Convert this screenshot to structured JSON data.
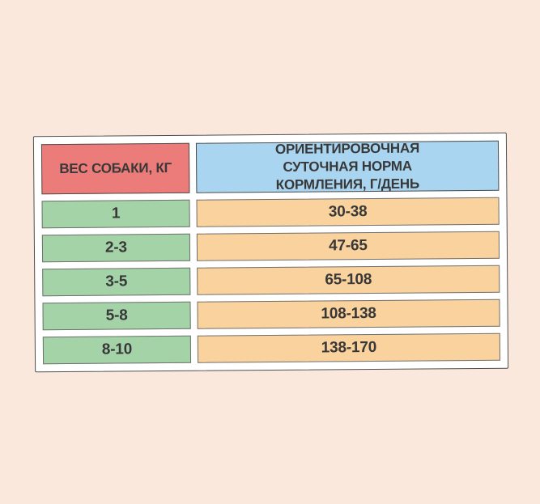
{
  "page": {
    "background": "#fae8dd",
    "panel_background": "#ffffff",
    "panel_border": "#4f4f4f"
  },
  "table": {
    "header": {
      "weight": "ВЕС СОБАКИ, КГ",
      "norm": "ОРИЕНТИРОВОЧНАЯ СУТОЧНАЯ НОРМА КОРМЛЕНИЯ, Г/ДЕНЬ"
    },
    "rows": [
      {
        "weight": "1",
        "norm": "30-38"
      },
      {
        "weight": "2-3",
        "norm": "47-65"
      },
      {
        "weight": "3-5",
        "norm": "65-108"
      },
      {
        "weight": "5-8",
        "norm": "108-138"
      },
      {
        "weight": "8-10",
        "norm": "138-170"
      }
    ],
    "colors": {
      "header_weight_bg": "#ec7c79",
      "header_norm_bg": "#a9d5f0",
      "weight_bg": "#a4d3a8",
      "norm_bg": "#f9d29e",
      "text": "#383838",
      "cell_border": "#707070"
    }
  },
  "chart_data": {
    "type": "table",
    "title": "",
    "columns": [
      "ВЕС СОБАКИ, КГ",
      "ОРИЕНТИРОВОЧНАЯ СУТОЧНАЯ НОРМА КОРМЛЕНИЯ, Г/ДЕНЬ"
    ],
    "rows": [
      [
        "1",
        "30-38"
      ],
      [
        "2-3",
        "47-65"
      ],
      [
        "3-5",
        "65-108"
      ],
      [
        "5-8",
        "108-138"
      ],
      [
        "8-10",
        "138-170"
      ]
    ]
  }
}
